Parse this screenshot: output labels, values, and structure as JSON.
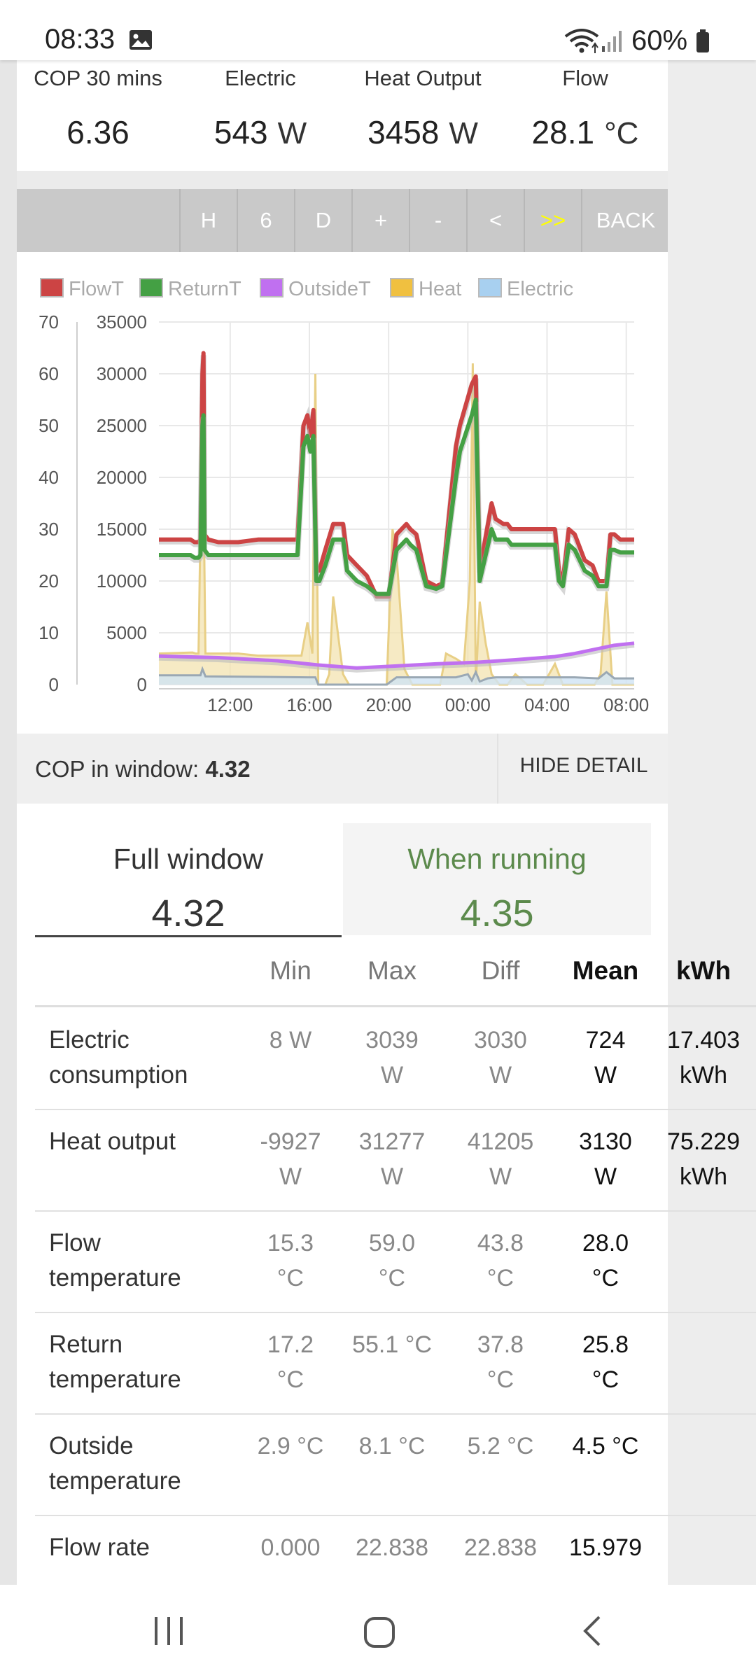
{
  "status": {
    "time": "08:33",
    "battery": "60%"
  },
  "top_stats": [
    {
      "label": "COP 30 mins",
      "value": "6.36",
      "unit": ""
    },
    {
      "label": "Electric",
      "value": "543",
      "unit": "W"
    },
    {
      "label": "Heat Output",
      "value": "3458",
      "unit": "W"
    },
    {
      "label": "Flow",
      "value": "28.1",
      "unit": "°C"
    }
  ],
  "toolbar": {
    "buttons": [
      "H",
      "6",
      "D",
      "+",
      "-",
      "<",
      ">>",
      "BACK"
    ]
  },
  "cop_window": {
    "label": "COP in window:",
    "value": "4.32",
    "hide_label": "HIDE DETAIL"
  },
  "tabs": {
    "full": {
      "label": "Full window",
      "value": "4.32"
    },
    "running": {
      "label": "When running",
      "value": "4.35"
    }
  },
  "table": {
    "headers": [
      "Min",
      "Max",
      "Diff",
      "Mean",
      "kWh"
    ],
    "rows": [
      {
        "name": [
          "Electric",
          "consumption"
        ],
        "min": [
          "8 W",
          ""
        ],
        "max": [
          "3039",
          "W"
        ],
        "diff": [
          "3030",
          "W"
        ],
        "mean": [
          "724",
          "W"
        ],
        "kwh": [
          "17.403",
          "kWh"
        ]
      },
      {
        "name": [
          "Heat output",
          ""
        ],
        "min": [
          "-9927",
          "W"
        ],
        "max": [
          "31277",
          "W"
        ],
        "diff": [
          "41205",
          "W"
        ],
        "mean": [
          "3130",
          "W"
        ],
        "kwh": [
          "75.229",
          "kWh"
        ]
      },
      {
        "name": [
          "Flow",
          "temperature"
        ],
        "min": [
          "15.3",
          "°C"
        ],
        "max": [
          "59.0",
          "°C"
        ],
        "diff": [
          "43.8",
          "°C"
        ],
        "mean": [
          "28.0",
          "°C"
        ],
        "kwh": [
          "",
          ""
        ]
      },
      {
        "name": [
          "Return",
          "temperature"
        ],
        "min": [
          "17.2",
          "°C"
        ],
        "max": [
          "55.1 °C",
          ""
        ],
        "diff": [
          "37.8",
          "°C"
        ],
        "mean": [
          "25.8",
          "°C"
        ],
        "kwh": [
          "",
          ""
        ]
      },
      {
        "name": [
          "Outside",
          "temperature"
        ],
        "min": [
          "2.9 °C",
          ""
        ],
        "max": [
          "8.1 °C",
          ""
        ],
        "diff": [
          "5.2 °C",
          ""
        ],
        "mean": [
          "4.5 °C",
          ""
        ],
        "kwh": [
          "",
          ""
        ]
      },
      {
        "name": [
          "Flow rate",
          ""
        ],
        "min": [
          "0.000",
          ""
        ],
        "max": [
          "22.838",
          ""
        ],
        "diff": [
          "22.838",
          ""
        ],
        "mean": [
          "15.979",
          ""
        ],
        "kwh": [
          "",
          ""
        ]
      }
    ]
  },
  "chart_data": {
    "type": "line",
    "legend": [
      {
        "name": "FlowT",
        "color": "#cc4444"
      },
      {
        "name": "ReturnT",
        "color": "#44a044"
      },
      {
        "name": "OutsideT",
        "color": "#c070f0"
      },
      {
        "name": "Heat",
        "color": "#f0c040"
      },
      {
        "name": "Electric",
        "color": "#a8d0f0"
      }
    ],
    "y_left": {
      "ticks": [
        "0",
        "10",
        "20",
        "30",
        "40",
        "50",
        "60",
        "70"
      ],
      "range": [
        0,
        70
      ]
    },
    "y_right": {
      "ticks": [
        "0",
        "5000",
        "10000",
        "15000",
        "20000",
        "25000",
        "30000",
        "35000"
      ],
      "range": [
        0,
        35000
      ]
    },
    "x_ticks": [
      "12:00",
      "16:00",
      "20:00",
      "00:00",
      "04:00",
      "08:00"
    ],
    "x_tick_hours": [
      3.6,
      7.6,
      11.6,
      15.6,
      19.6,
      23.6
    ],
    "x_range_hours": [
      0,
      24
    ],
    "series": [
      {
        "name": "FlowT",
        "axis": "left",
        "x": [
          0,
          1.6,
          1.8,
          2.0,
          2.1,
          2.2,
          2.25,
          2.3,
          2.5,
          3,
          3.5,
          4,
          5,
          6,
          7,
          7.3,
          7.5,
          7.65,
          7.8,
          7.95,
          8.1,
          8.4,
          8.8,
          9.3,
          9.5,
          10,
          10.5,
          11,
          11.6,
          12,
          12.5,
          12.7,
          13,
          13.5,
          14,
          14.3,
          15,
          15.2,
          15.8,
          16,
          16.2,
          16.8,
          17,
          17.4,
          17.6,
          17.8,
          18,
          18.4,
          18.8,
          19.2,
          19.6,
          20,
          20.2,
          20.4,
          20.7,
          21,
          21.5,
          21.9,
          22.2,
          22.6,
          22.8,
          23,
          23.3,
          24
        ],
        "values": [
          28,
          28,
          27.5,
          27.5,
          28,
          60,
          64,
          29,
          28,
          27.5,
          27.5,
          27.5,
          28,
          28,
          28,
          50,
          52,
          48,
          53,
          22,
          22,
          26,
          31,
          31,
          25,
          23,
          21,
          17,
          17,
          29,
          31,
          30,
          29,
          20,
          19,
          19.5,
          46,
          50,
          58,
          59.5,
          22,
          35,
          32,
          31,
          31,
          30,
          30,
          30,
          30,
          30,
          30,
          30,
          22,
          20,
          30,
          29,
          24,
          23,
          20,
          20,
          29,
          29,
          28,
          28
        ]
      },
      {
        "name": "ReturnT",
        "axis": "left",
        "x": [
          0,
          1.6,
          1.8,
          2.0,
          2.1,
          2.2,
          2.25,
          2.3,
          2.5,
          3,
          3.5,
          4,
          5,
          6,
          7,
          7.3,
          7.5,
          7.65,
          7.8,
          7.95,
          8.1,
          8.4,
          8.8,
          9.3,
          9.5,
          10,
          10.5,
          11,
          11.6,
          12,
          12.5,
          12.7,
          13,
          13.5,
          14,
          14.3,
          15,
          15.2,
          15.8,
          16,
          16.2,
          16.8,
          17,
          17.4,
          17.6,
          17.8,
          18,
          18.4,
          18.8,
          19.2,
          19.6,
          20,
          20.2,
          20.4,
          20.7,
          21,
          21.5,
          21.9,
          22.2,
          22.6,
          22.8,
          23,
          23.3,
          24
        ],
        "values": [
          25,
          25,
          24.5,
          24.5,
          25,
          50,
          52,
          26,
          25,
          25,
          25,
          25,
          25,
          25,
          25,
          46,
          48,
          45,
          48,
          20,
          20,
          23,
          28,
          28,
          22,
          20,
          19,
          17.5,
          17.5,
          26,
          28,
          27,
          26,
          19,
          18.5,
          19,
          40,
          45,
          52,
          55,
          20,
          30,
          28,
          28,
          28,
          27,
          27,
          27,
          27,
          27,
          27,
          27,
          20,
          19,
          27,
          26,
          22,
          21,
          19,
          19,
          26,
          26,
          25.5,
          25.5
        ]
      },
      {
        "name": "OutsideT",
        "axis": "left",
        "x": [
          0,
          3,
          6,
          8,
          10,
          12,
          14,
          16,
          18,
          20,
          21,
          22,
          23,
          24
        ],
        "values": [
          5.5,
          5.2,
          4.6,
          3.8,
          3.2,
          3.6,
          4.0,
          4.3,
          4.8,
          5.4,
          6.0,
          6.8,
          7.6,
          8.0
        ]
      },
      {
        "name": "Heat",
        "axis": "right",
        "x": [
          0,
          1.7,
          1.85,
          2.0,
          2.2,
          2.35,
          2.5,
          3,
          4,
          5,
          6,
          7.2,
          7.5,
          7.75,
          7.9,
          8.05,
          8.4,
          8.6,
          8.8,
          9.3,
          9.6,
          10,
          11.2,
          11.5,
          11.8,
          12,
          12.4,
          12.8,
          13,
          13.5,
          14.2,
          14.5,
          15,
          15.4,
          15.7,
          15.85,
          16.0,
          16.2,
          16.5,
          16.8,
          17.2,
          17.6,
          18,
          18.6,
          19,
          19.4,
          20,
          20.4,
          20.6,
          21,
          22,
          22.3,
          22.6,
          22.9,
          23.2,
          24
        ],
        "values": [
          3000,
          3100,
          3000,
          3000,
          27500,
          3000,
          3000,
          3000,
          3000,
          2800,
          2800,
          2800,
          6000,
          3000,
          30000,
          0,
          0,
          1000,
          8500,
          1000,
          0,
          0,
          0,
          0,
          15000,
          12500,
          1500,
          0,
          0,
          0,
          0,
          3000,
          2500,
          2000,
          10000,
          31000,
          0,
          8000,
          4000,
          1000,
          0,
          0,
          1000,
          0,
          0,
          0,
          2000,
          0,
          0,
          0,
          0,
          1000,
          9000,
          0,
          0,
          0
        ]
      },
      {
        "name": "Electric",
        "axis": "right",
        "x": [
          0,
          2.1,
          2.2,
          2.35,
          7.5,
          7.9,
          8.05,
          9.5,
          11.5,
          12,
          13,
          15,
          15.6,
          15.8,
          16,
          16.2,
          16.6,
          17,
          17.4,
          20,
          21,
          22.2,
          22.6,
          23,
          24
        ],
        "values": [
          900,
          900,
          1500,
          800,
          700,
          700,
          0,
          0,
          0,
          700,
          700,
          700,
          1000,
          400,
          1200,
          300,
          600,
          700,
          700,
          700,
          700,
          600,
          1200,
          600,
          600
        ]
      }
    ]
  }
}
